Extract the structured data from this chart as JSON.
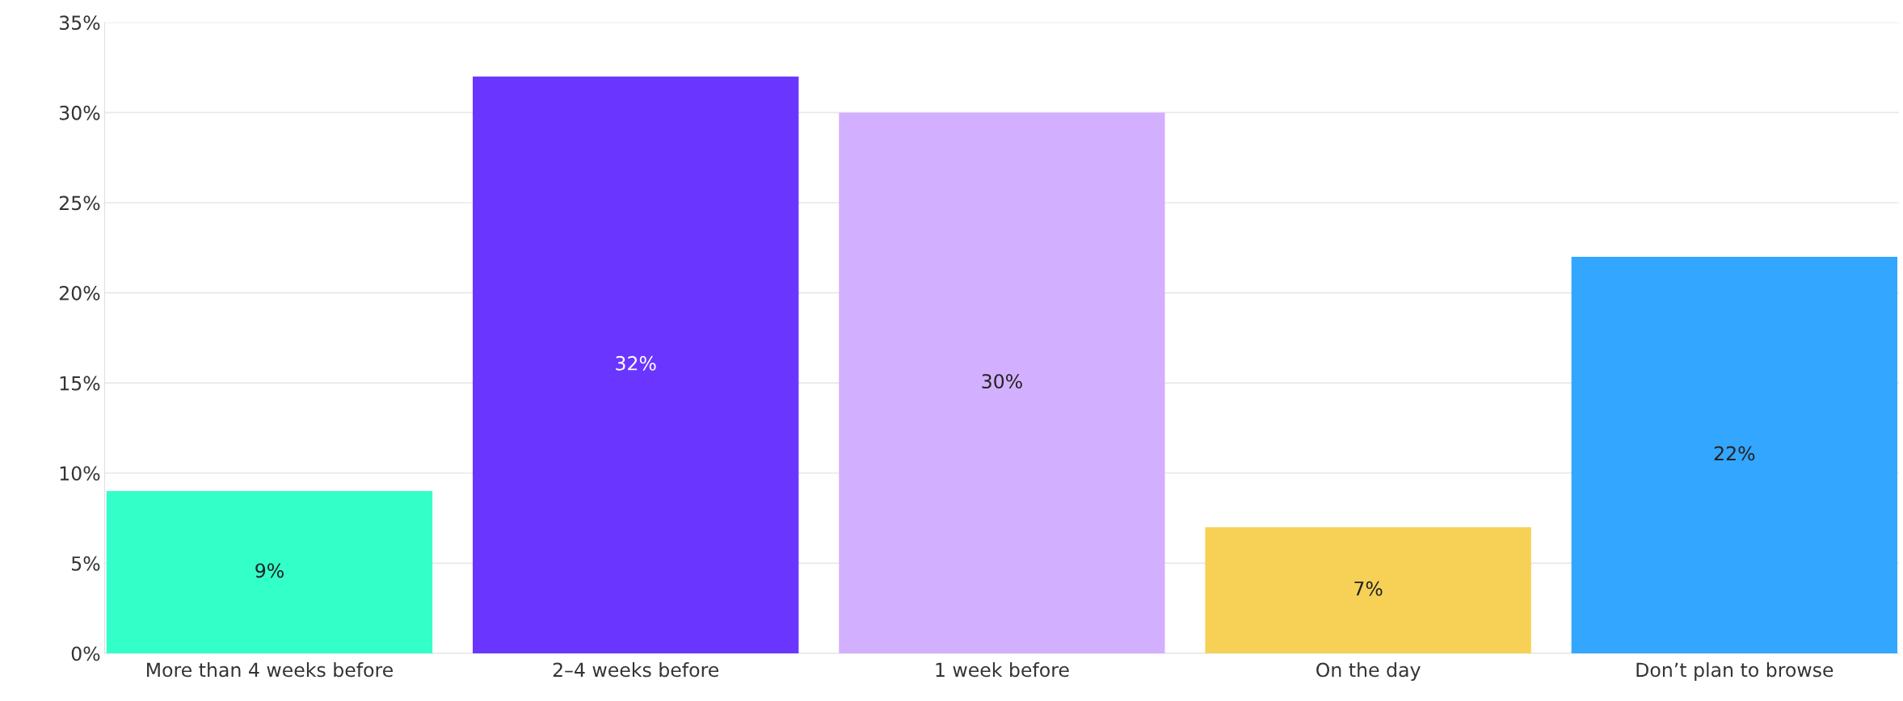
{
  "chart_data": {
    "type": "bar",
    "categories": [
      "More than 4 weeks before",
      "2–4 weeks before",
      "1 week before",
      "On the day",
      "Don’t plan to browse"
    ],
    "values": [
      9,
      32,
      30,
      7,
      22
    ],
    "colors": [
      "#33ffc9",
      "#6a36ff",
      "#d3afff",
      "#f6d155",
      "#33a6ff"
    ],
    "value_labels": [
      "9%",
      "32%",
      "30%",
      "7%",
      "22%"
    ],
    "ylim": [
      0,
      35
    ],
    "yticks": [
      {
        "value": 0,
        "label": "0%"
      },
      {
        "value": 5,
        "label": "5%"
      },
      {
        "value": 10,
        "label": "10%"
      },
      {
        "value": 15,
        "label": "15%"
      },
      {
        "value": 20,
        "label": "20%"
      },
      {
        "value": 25,
        "label": "25%"
      },
      {
        "value": 30,
        "label": "30%"
      },
      {
        "value": 35,
        "label": "35%"
      }
    ],
    "grid": "y"
  }
}
